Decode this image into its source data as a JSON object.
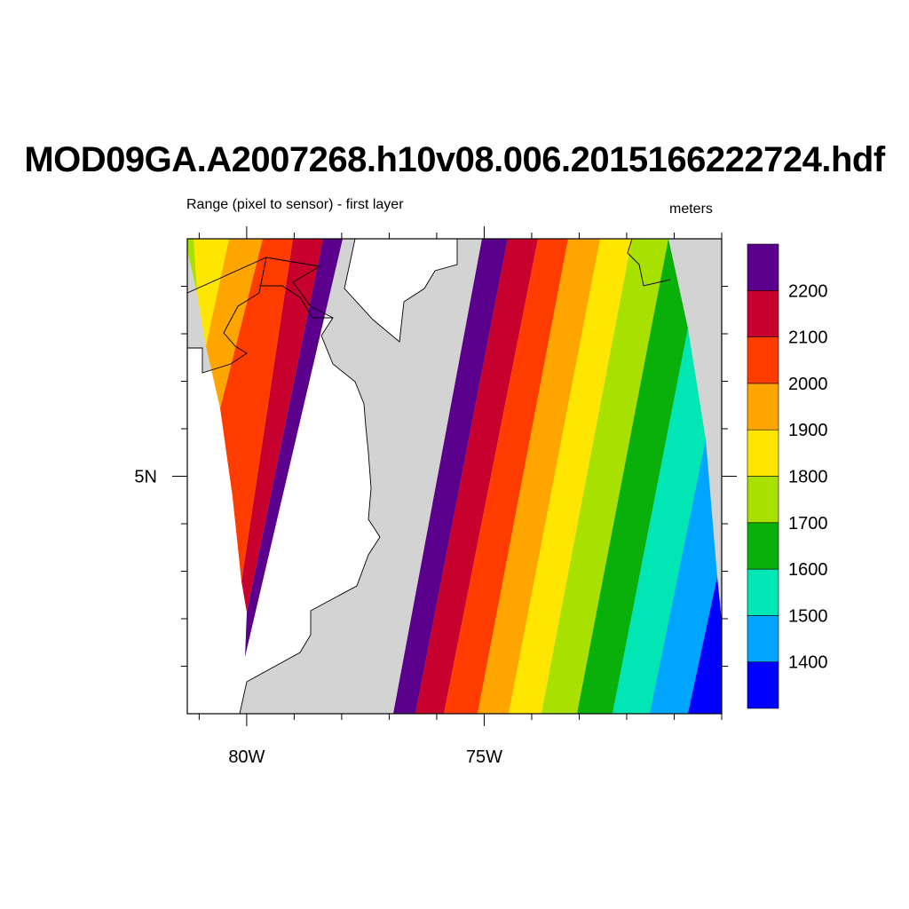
{
  "title": "MOD09GA.A2007268.h10v08.006.2015166222724.hdf",
  "subtitle": "Range (pixel to sensor) - first layer",
  "units": "meters",
  "colors": {
    "land": "#d3d3d3",
    "ocean": "#ffffff",
    "coast": "#000000"
  },
  "map_data": {
    "type": "filled-contour-map",
    "lon_range": [
      -81.25,
      -70.0
    ],
    "lat_range": [
      0.0,
      10.0
    ],
    "x_tick_labels": [
      {
        "lon": -80,
        "label": "80W"
      },
      {
        "lon": -75,
        "label": "75W"
      }
    ],
    "y_tick_labels": [
      {
        "lat": 5,
        "label": "5N"
      }
    ],
    "x_minor_ticks": [
      -81,
      -80,
      -79,
      -78,
      -77,
      -76,
      -75,
      -74,
      -73,
      -72,
      -71,
      -70
    ],
    "y_minor_ticks": [
      1,
      2,
      3,
      4,
      5,
      6,
      7,
      8,
      9
    ]
  },
  "colorbar": {
    "levels": [
      1400,
      1500,
      1600,
      1700,
      1800,
      1900,
      2000,
      2100,
      2200
    ],
    "colors": [
      "#0000ff",
      "#00a5ff",
      "#00e6b4",
      "#09b009",
      "#a8e000",
      "#ffe600",
      "#ffa500",
      "#ff3c00",
      "#c8002d",
      "#5a008c"
    ]
  }
}
